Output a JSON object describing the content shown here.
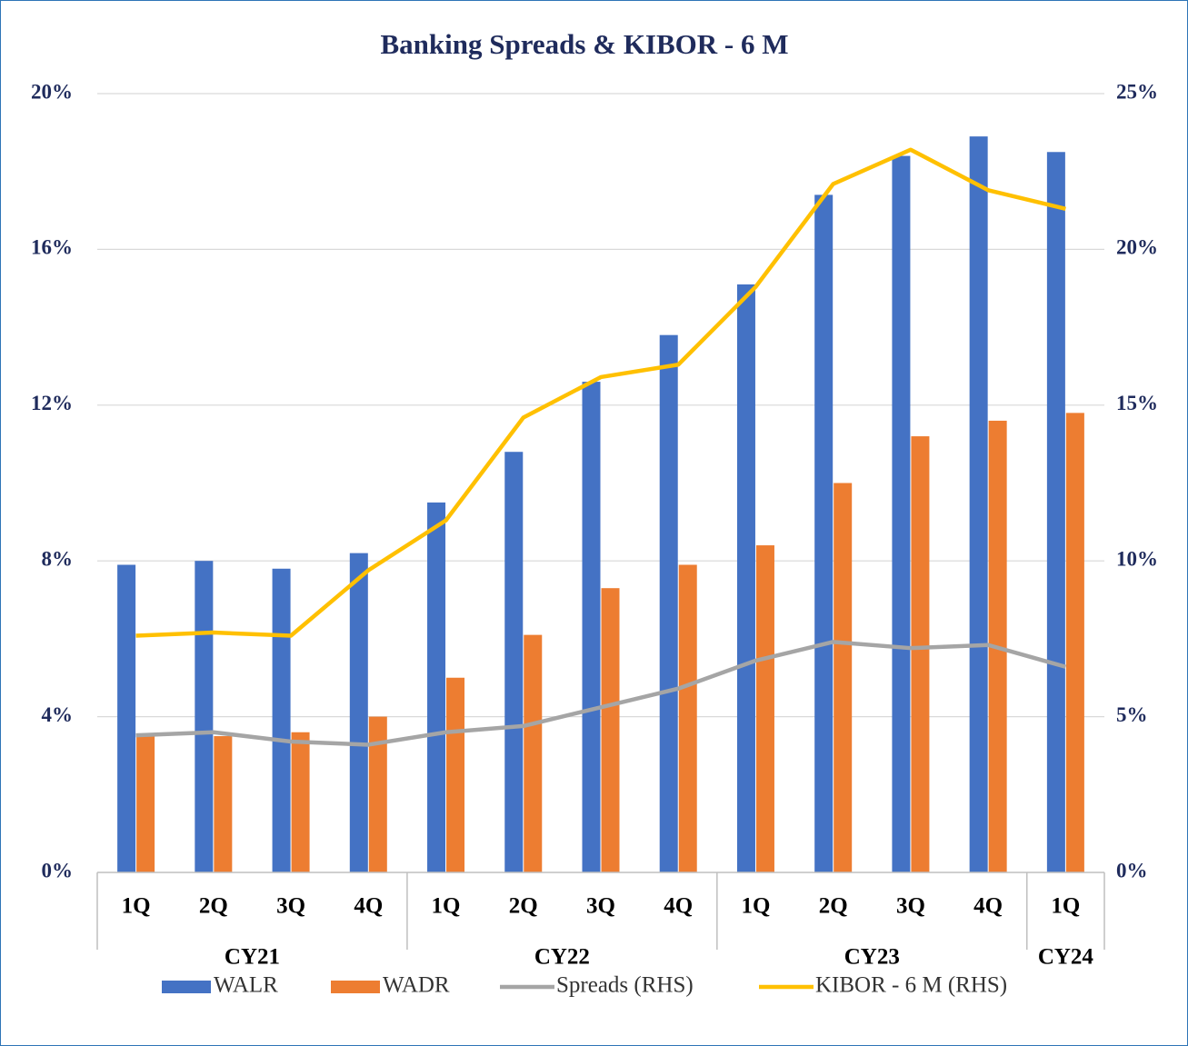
{
  "chart_data": {
    "type": "bar",
    "title": "Banking Spreads & KIBOR - 6 M",
    "categories": [
      "1Q",
      "2Q",
      "3Q",
      "4Q",
      "1Q",
      "2Q",
      "3Q",
      "4Q",
      "1Q",
      "2Q",
      "3Q",
      "4Q",
      "1Q"
    ],
    "category_groups": [
      "CY21",
      "CY21",
      "CY21",
      "CY21",
      "CY22",
      "CY22",
      "CY22",
      "CY22",
      "CY23",
      "CY23",
      "CY23",
      "CY23",
      "CY24"
    ],
    "series": [
      {
        "name": "WALR",
        "type": "bar",
        "color": "#4472c4",
        "values": [
          7.9,
          8.0,
          7.8,
          8.2,
          9.5,
          10.8,
          12.6,
          13.8,
          15.1,
          17.4,
          18.4,
          18.9,
          18.5
        ]
      },
      {
        "name": "WADR",
        "type": "bar",
        "color": "#ed7d31",
        "values": [
          3.5,
          3.5,
          3.6,
          4.0,
          5.0,
          6.1,
          7.3,
          7.9,
          8.4,
          10.0,
          11.2,
          11.6,
          11.8
        ]
      },
      {
        "name": "Spreads (RHS)",
        "type": "line",
        "axis": "y2",
        "color": "#a5a5a5",
        "values": [
          4.4,
          4.5,
          4.2,
          4.1,
          4.5,
          4.7,
          5.3,
          5.9,
          6.8,
          7.4,
          7.2,
          7.3,
          6.6
        ]
      },
      {
        "name": "KIBOR - 6 M (RHS)",
        "type": "line",
        "axis": "y2",
        "color": "#ffc000",
        "values": [
          7.6,
          7.7,
          7.6,
          9.7,
          11.3,
          14.6,
          15.9,
          16.3,
          18.8,
          22.1,
          23.2,
          21.9,
          21.3
        ]
      }
    ],
    "ylim": [
      0,
      20
    ],
    "yticks": [
      {
        "value": 0,
        "label": "0%"
      },
      {
        "value": 4,
        "label": "4%"
      },
      {
        "value": 8,
        "label": "8%"
      },
      {
        "value": 12,
        "label": "12%"
      },
      {
        "value": 16,
        "label": "16%"
      },
      {
        "value": 20,
        "label": "20%"
      }
    ],
    "y2lim": [
      0,
      25
    ],
    "y2ticks": [
      {
        "value": 0,
        "label": "0%"
      },
      {
        "value": 5,
        "label": "5%"
      },
      {
        "value": 10,
        "label": "10%"
      },
      {
        "value": 15,
        "label": "15%"
      },
      {
        "value": 20,
        "label": "20%"
      },
      {
        "value": 25,
        "label": "25%"
      }
    ],
    "grid": true,
    "legend": "bottom"
  }
}
